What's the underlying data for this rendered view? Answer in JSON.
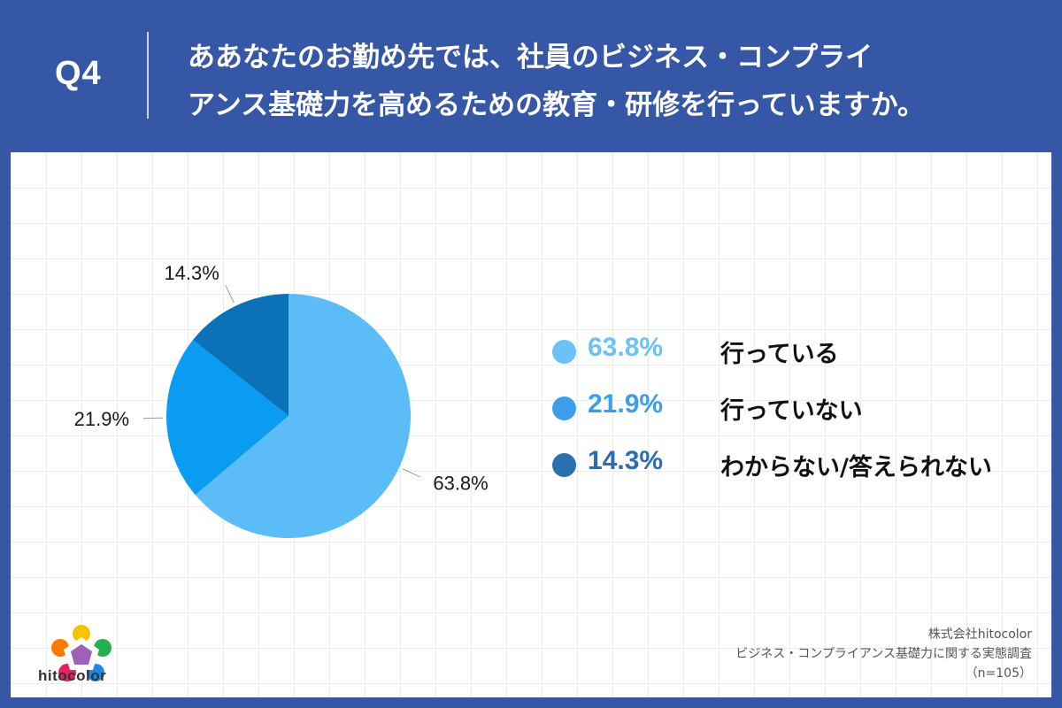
{
  "header": {
    "q_label": "Q4",
    "title_line1": "ああなたのお勤め先では、社員のビジネス・コンプライ",
    "title_line2": "アンス基礎力を高めるための教育・研修を行っていますか。"
  },
  "chart_data": {
    "type": "pie",
    "categories": [
      "行っている",
      "行っていない",
      "わからない/答えられない"
    ],
    "values": [
      63.8,
      21.9,
      14.3
    ],
    "value_labels": [
      "63.8%",
      "21.9%",
      "14.3%"
    ],
    "colors": [
      "#5bbcf8",
      "#0a9bf2",
      "#0b72b8"
    ],
    "legend_dot_colors": [
      "#6cc2f5",
      "#3a9ee8",
      "#2c6fb0"
    ],
    "legend_placement": "right",
    "start": "top",
    "direction": "clockwise"
  },
  "legend": [
    {
      "pct": "63.8%",
      "label": "行っている",
      "color": "#6cc2f5"
    },
    {
      "pct": "21.9%",
      "label": "行っていない",
      "color": "#3a9ee8"
    },
    {
      "pct": "14.3%",
      "label": "わからない/答えられない",
      "color": "#2c6fb0"
    }
  ],
  "footer": {
    "logo_text": "hitocolor",
    "company": "株式会社hitocolor",
    "survey": "ビジネス・コンプライアンス基礎力に関する実態調査",
    "sample": "（n=105）"
  }
}
